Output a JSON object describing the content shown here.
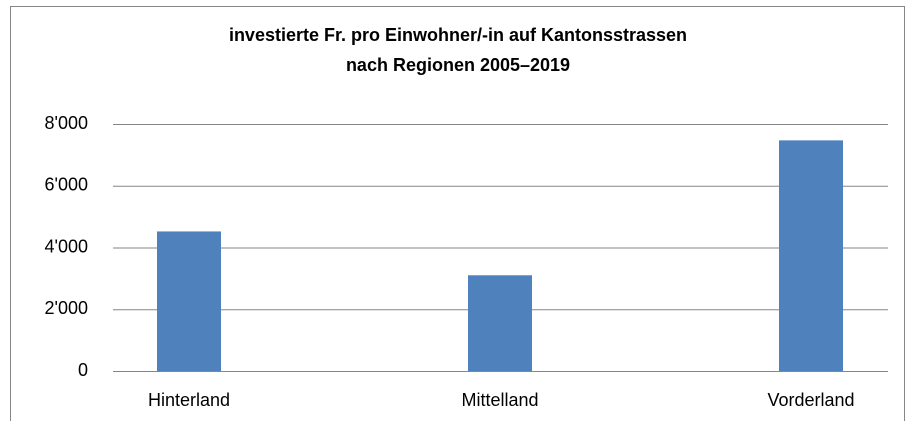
{
  "chart_data": {
    "type": "bar",
    "title": [
      "investierte Fr. pro Einwohner/-in auf Kantonsstrassen",
      "nach Regionen 2005–2019"
    ],
    "categories": [
      "Hinterland",
      "Mittelland",
      "Vorderland"
    ],
    "values": [
      4520,
      3100,
      7470
    ],
    "color": "#4f81bd",
    "ylim": [
      0,
      8000
    ],
    "yticks": [
      0,
      {
        "value": 2000,
        "label": "2'000"
      },
      {
        "value": 4000,
        "label": "4'000"
      },
      {
        "value": 6000,
        "label": "6'000"
      },
      {
        "value": 8000,
        "label": "8'000"
      }
    ],
    "grid": true
  }
}
